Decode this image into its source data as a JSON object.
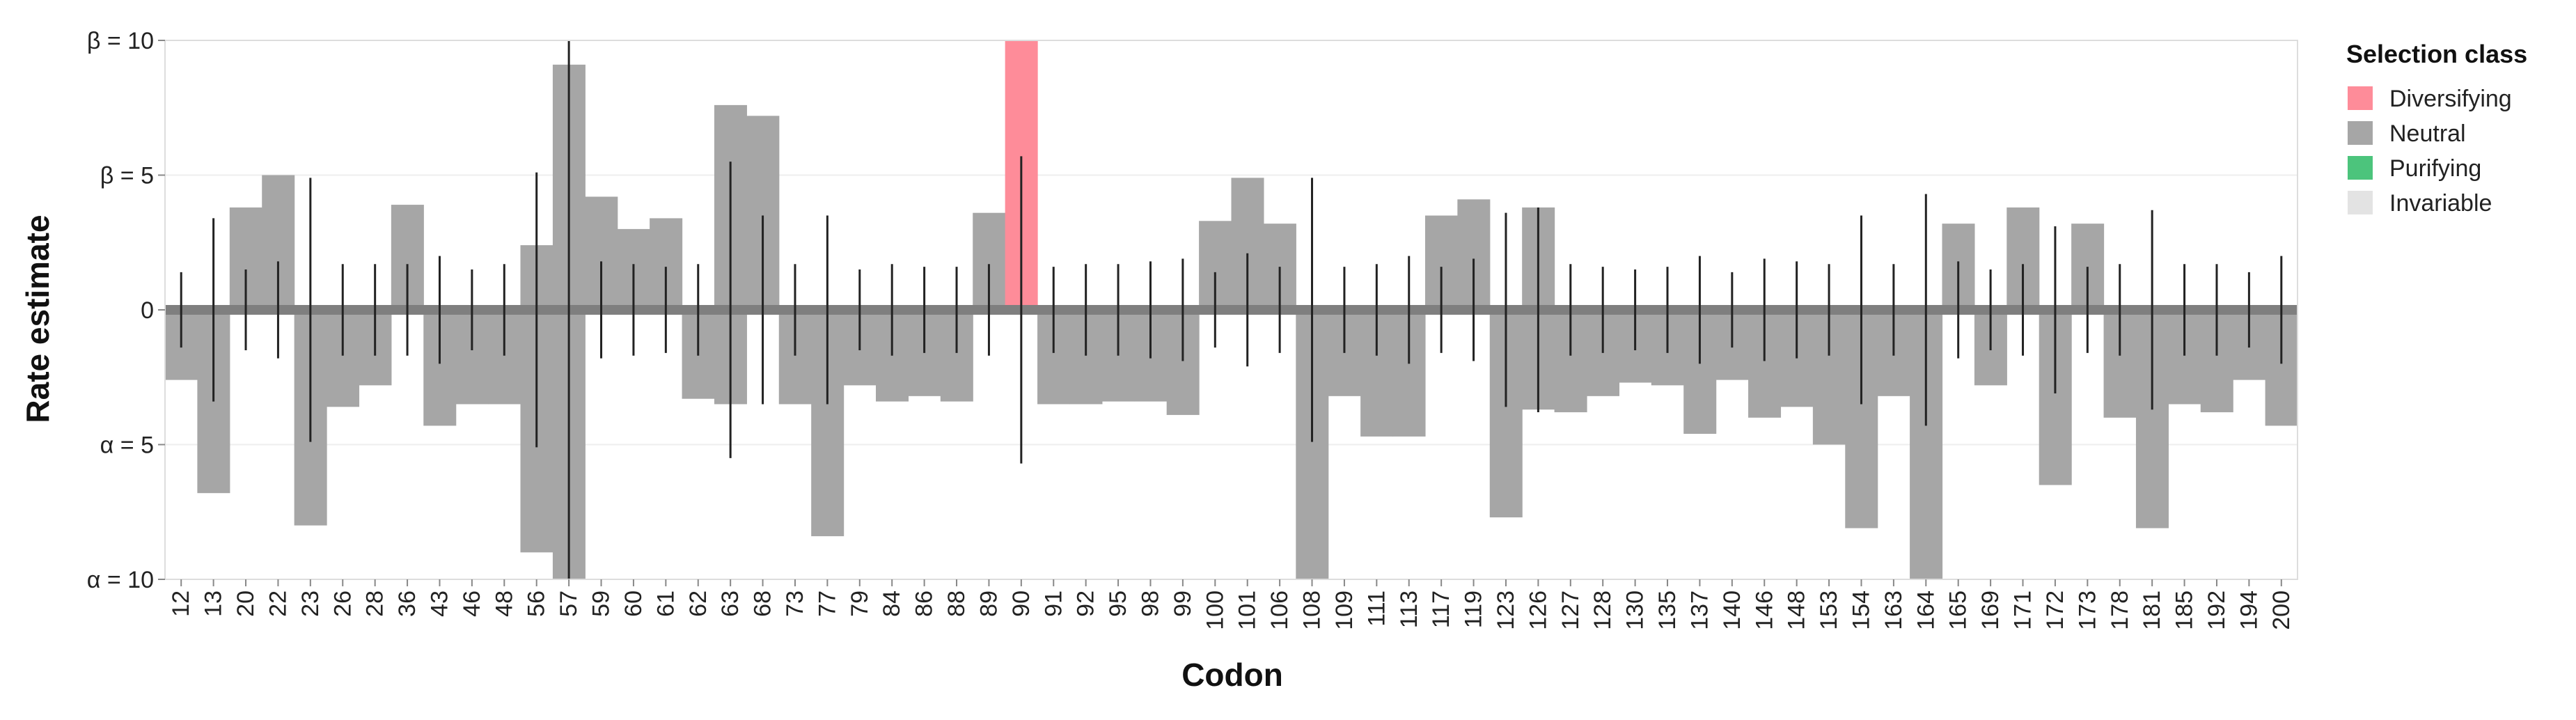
{
  "chart_data": {
    "type": "bar",
    "xlabel": "Codon",
    "ylabel": "Rate estimate",
    "ylim": [
      -10,
      10
    ],
    "y_ticks": [
      {
        "value": 10,
        "label": "β = 10"
      },
      {
        "value": 5,
        "label": "β = 5"
      },
      {
        "value": 0,
        "label": "0"
      },
      {
        "value": -5,
        "label": "α = 5"
      },
      {
        "value": -10,
        "label": "α = 10"
      }
    ],
    "legend": {
      "title": "Selection class",
      "placement": "right",
      "items": [
        {
          "label": "Diversifying",
          "color": "#fe8c99"
        },
        {
          "label": "Neutral",
          "color": "#a6a6a6"
        },
        {
          "label": "Purifying",
          "color": "#4cc47c"
        },
        {
          "label": "Invariable",
          "color": "#e3e3e3"
        }
      ]
    },
    "class_colors": {
      "Diversifying": "#fe8c99",
      "Neutral": "#a6a6a6",
      "Purifying": "#4cc47c",
      "Invariable": "#e3e3e3"
    },
    "codons": [
      {
        "codon": "12",
        "beta": 0,
        "alpha": 2.6,
        "ci": 1.4,
        "class": "Neutral"
      },
      {
        "codon": "13",
        "beta": 0,
        "alpha": 6.8,
        "ci": 3.4,
        "class": "Neutral"
      },
      {
        "codon": "20",
        "beta": 3.8,
        "alpha": 0,
        "ci": 1.5,
        "class": "Neutral"
      },
      {
        "codon": "22",
        "beta": 5.0,
        "alpha": 0,
        "ci": 1.8,
        "class": "Neutral"
      },
      {
        "codon": "23",
        "beta": 0,
        "alpha": 8.0,
        "ci": 4.9,
        "class": "Neutral"
      },
      {
        "codon": "26",
        "beta": 0,
        "alpha": 3.6,
        "ci": 1.7,
        "class": "Neutral"
      },
      {
        "codon": "28",
        "beta": 0,
        "alpha": 2.8,
        "ci": 1.7,
        "class": "Neutral"
      },
      {
        "codon": "36",
        "beta": 3.9,
        "alpha": 0,
        "ci": 1.7,
        "class": "Neutral"
      },
      {
        "codon": "43",
        "beta": 0,
        "alpha": 4.3,
        "ci": 2.0,
        "class": "Neutral"
      },
      {
        "codon": "46",
        "beta": 0,
        "alpha": 3.5,
        "ci": 1.5,
        "class": "Neutral"
      },
      {
        "codon": "48",
        "beta": 0,
        "alpha": 3.5,
        "ci": 1.7,
        "class": "Neutral"
      },
      {
        "codon": "56",
        "beta": 2.4,
        "alpha": 9.0,
        "ci": 5.1,
        "class": "Neutral"
      },
      {
        "codon": "57",
        "beta": 9.1,
        "alpha": 10.0,
        "ci": 10.0,
        "class": "Neutral"
      },
      {
        "codon": "59",
        "beta": 4.2,
        "alpha": 0,
        "ci": 1.8,
        "class": "Neutral"
      },
      {
        "codon": "60",
        "beta": 3.0,
        "alpha": 0,
        "ci": 1.7,
        "class": "Neutral"
      },
      {
        "codon": "61",
        "beta": 3.4,
        "alpha": 0,
        "ci": 1.6,
        "class": "Neutral"
      },
      {
        "codon": "62",
        "beta": 0,
        "alpha": 3.3,
        "ci": 1.7,
        "class": "Neutral"
      },
      {
        "codon": "63",
        "beta": 7.6,
        "alpha": 3.5,
        "ci": 5.5,
        "class": "Neutral"
      },
      {
        "codon": "68",
        "beta": 7.2,
        "alpha": 0,
        "ci": 3.5,
        "class": "Neutral"
      },
      {
        "codon": "73",
        "beta": 0,
        "alpha": 3.5,
        "ci": 1.7,
        "class": "Neutral"
      },
      {
        "codon": "77",
        "beta": 0,
        "alpha": 8.4,
        "ci": 3.5,
        "class": "Neutral"
      },
      {
        "codon": "79",
        "beta": 0,
        "alpha": 2.8,
        "ci": 1.5,
        "class": "Neutral"
      },
      {
        "codon": "84",
        "beta": 0,
        "alpha": 3.4,
        "ci": 1.7,
        "class": "Neutral"
      },
      {
        "codon": "86",
        "beta": 0,
        "alpha": 3.2,
        "ci": 1.6,
        "class": "Neutral"
      },
      {
        "codon": "88",
        "beta": 0,
        "alpha": 3.4,
        "ci": 1.6,
        "class": "Neutral"
      },
      {
        "codon": "89",
        "beta": 3.6,
        "alpha": 0,
        "ci": 1.7,
        "class": "Neutral"
      },
      {
        "codon": "90",
        "beta": 10.0,
        "alpha": 0,
        "ci": 5.7,
        "class": "Diversifying"
      },
      {
        "codon": "91",
        "beta": 0,
        "alpha": 3.5,
        "ci": 1.6,
        "class": "Neutral"
      },
      {
        "codon": "92",
        "beta": 0,
        "alpha": 3.5,
        "ci": 1.7,
        "class": "Neutral"
      },
      {
        "codon": "95",
        "beta": 0,
        "alpha": 3.4,
        "ci": 1.7,
        "class": "Neutral"
      },
      {
        "codon": "98",
        "beta": 0,
        "alpha": 3.4,
        "ci": 1.8,
        "class": "Neutral"
      },
      {
        "codon": "99",
        "beta": 0,
        "alpha": 3.9,
        "ci": 1.9,
        "class": "Neutral"
      },
      {
        "codon": "100",
        "beta": 3.3,
        "alpha": 0,
        "ci": 1.4,
        "class": "Neutral"
      },
      {
        "codon": "101",
        "beta": 4.9,
        "alpha": 0,
        "ci": 2.1,
        "class": "Neutral"
      },
      {
        "codon": "106",
        "beta": 3.2,
        "alpha": 0,
        "ci": 1.6,
        "class": "Neutral"
      },
      {
        "codon": "108",
        "beta": 0,
        "alpha": 10.0,
        "ci": 4.9,
        "class": "Neutral"
      },
      {
        "codon": "109",
        "beta": 0,
        "alpha": 3.2,
        "ci": 1.6,
        "class": "Neutral"
      },
      {
        "codon": "111",
        "beta": 0,
        "alpha": 4.7,
        "ci": 1.7,
        "class": "Neutral"
      },
      {
        "codon": "113",
        "beta": 0,
        "alpha": 4.7,
        "ci": 2.0,
        "class": "Neutral"
      },
      {
        "codon": "117",
        "beta": 3.5,
        "alpha": 0,
        "ci": 1.6,
        "class": "Neutral"
      },
      {
        "codon": "119",
        "beta": 4.1,
        "alpha": 0,
        "ci": 1.9,
        "class": "Neutral"
      },
      {
        "codon": "123",
        "beta": 0,
        "alpha": 7.7,
        "ci": 3.6,
        "class": "Neutral"
      },
      {
        "codon": "126",
        "beta": 3.8,
        "alpha": 3.7,
        "ci": 3.8,
        "class": "Neutral"
      },
      {
        "codon": "127",
        "beta": 0,
        "alpha": 3.8,
        "ci": 1.7,
        "class": "Neutral"
      },
      {
        "codon": "128",
        "beta": 0,
        "alpha": 3.2,
        "ci": 1.6,
        "class": "Neutral"
      },
      {
        "codon": "130",
        "beta": 0,
        "alpha": 2.7,
        "ci": 1.5,
        "class": "Neutral"
      },
      {
        "codon": "135",
        "beta": 0,
        "alpha": 2.8,
        "ci": 1.6,
        "class": "Neutral"
      },
      {
        "codon": "137",
        "beta": 0,
        "alpha": 4.6,
        "ci": 2.0,
        "class": "Neutral"
      },
      {
        "codon": "140",
        "beta": 0,
        "alpha": 2.6,
        "ci": 1.4,
        "class": "Neutral"
      },
      {
        "codon": "146",
        "beta": 0,
        "alpha": 4.0,
        "ci": 1.9,
        "class": "Neutral"
      },
      {
        "codon": "148",
        "beta": 0,
        "alpha": 3.6,
        "ci": 1.8,
        "class": "Neutral"
      },
      {
        "codon": "153",
        "beta": 0,
        "alpha": 5.0,
        "ci": 1.7,
        "class": "Neutral"
      },
      {
        "codon": "154",
        "beta": 0,
        "alpha": 8.1,
        "ci": 3.5,
        "class": "Neutral"
      },
      {
        "codon": "163",
        "beta": 0,
        "alpha": 3.2,
        "ci": 1.7,
        "class": "Neutral"
      },
      {
        "codon": "164",
        "beta": 0,
        "alpha": 10.0,
        "ci": 4.3,
        "class": "Neutral"
      },
      {
        "codon": "165",
        "beta": 3.2,
        "alpha": 0,
        "ci": 1.8,
        "class": "Neutral"
      },
      {
        "codon": "169",
        "beta": 0,
        "alpha": 2.8,
        "ci": 1.5,
        "class": "Neutral"
      },
      {
        "codon": "171",
        "beta": 3.8,
        "alpha": 0,
        "ci": 1.7,
        "class": "Neutral"
      },
      {
        "codon": "172",
        "beta": 0,
        "alpha": 6.5,
        "ci": 3.1,
        "class": "Neutral"
      },
      {
        "codon": "173",
        "beta": 3.2,
        "alpha": 0,
        "ci": 1.6,
        "class": "Neutral"
      },
      {
        "codon": "178",
        "beta": 0,
        "alpha": 4.0,
        "ci": 1.7,
        "class": "Neutral"
      },
      {
        "codon": "181",
        "beta": 0,
        "alpha": 8.1,
        "ci": 3.7,
        "class": "Neutral"
      },
      {
        "codon": "185",
        "beta": 0,
        "alpha": 3.5,
        "ci": 1.7,
        "class": "Neutral"
      },
      {
        "codon": "192",
        "beta": 0,
        "alpha": 3.8,
        "ci": 1.7,
        "class": "Neutral"
      },
      {
        "codon": "194",
        "beta": 0,
        "alpha": 2.6,
        "ci": 1.4,
        "class": "Neutral"
      },
      {
        "codon": "200",
        "beta": 0,
        "alpha": 4.3,
        "ci": 2.0,
        "class": "Neutral"
      }
    ]
  }
}
